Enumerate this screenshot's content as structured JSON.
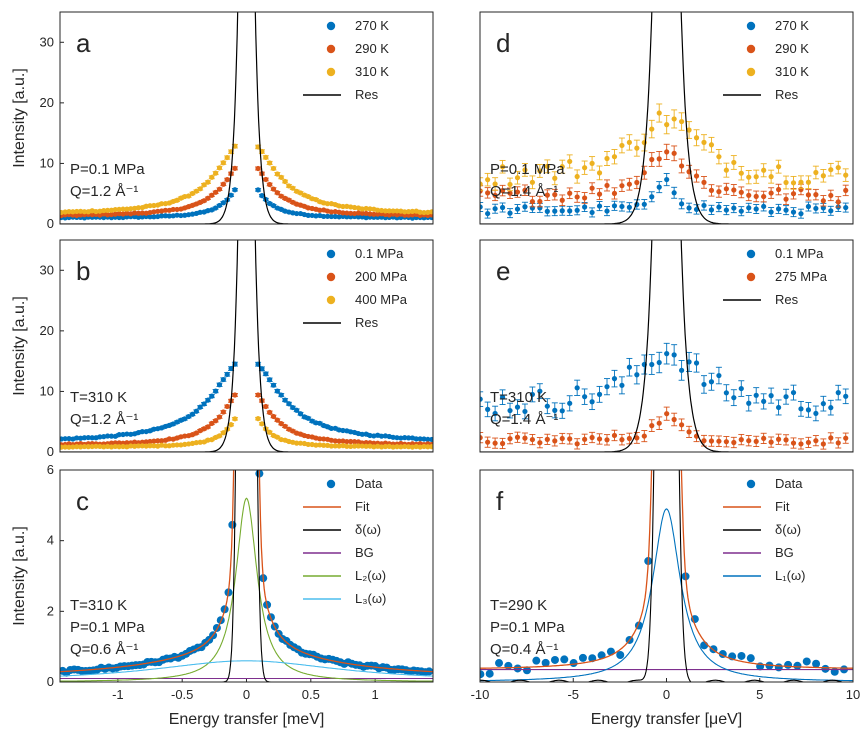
{
  "colors": {
    "blue": "#0072BD",
    "orange": "#D95319",
    "yellow": "#EDB120",
    "purple": "#7E2F8E",
    "green": "#77AC30",
    "cyan": "#4DBEEE",
    "black": "#000000"
  },
  "chart_data": [
    {
      "type": "scatter",
      "panel": "a",
      "letter": "a",
      "conditions": [
        "P=0.1 MPa",
        "Q=1.2 Å⁻¹"
      ],
      "xlim": [
        -1.45,
        1.45
      ],
      "ylim": [
        0,
        35
      ],
      "yticks": [
        0,
        10,
        20,
        30
      ],
      "xticks": [],
      "ylabel": "Intensity [a.u.]",
      "xlabel": "",
      "legend": "top-right",
      "legend_entries": [
        "270 K",
        "290 K",
        "310 K",
        "Res"
      ],
      "model": {
        "kind": "lor",
        "widths": [
          0.14,
          0.2,
          0.26
        ],
        "peaks": [
          6.5,
          9.5,
          12.5
        ],
        "bases": [
          1.0,
          1.3,
          1.6
        ],
        "hide": 0.08,
        "err": 0.07,
        "step": 0.03
      },
      "resolution": {
        "width": 0.045,
        "peak": 150
      },
      "series": [
        {
          "name": "270 K",
          "color_key": "blue"
        },
        {
          "name": "290 K",
          "color_key": "orange"
        },
        {
          "name": "310 K",
          "color_key": "yellow"
        }
      ]
    },
    {
      "type": "scatter",
      "panel": "b",
      "letter": "b",
      "conditions": [
        "T=310 K",
        "Q=1.2 Å⁻¹"
      ],
      "xlim": [
        -1.45,
        1.45
      ],
      "ylim": [
        0,
        35
      ],
      "yticks": [
        0,
        10,
        20,
        30
      ],
      "xticks": [],
      "ylabel": "Intensity [a.u.]",
      "xlabel": "",
      "legend": "top-right",
      "legend_entries": [
        "0.1 MPa",
        "200 MPa",
        "400 MPa",
        "Res"
      ],
      "model": {
        "kind": "lor",
        "widths": [
          0.3,
          0.2,
          0.13
        ],
        "peaks": [
          14,
          10,
          7
        ],
        "bases": [
          1.6,
          1.1,
          0.8
        ],
        "hide": 0.08,
        "err": 0.07,
        "step": 0.03
      },
      "resolution": {
        "width": 0.045,
        "peak": 150
      },
      "series": [
        {
          "name": "0.1 MPa",
          "color_key": "blue"
        },
        {
          "name": "200 MPa",
          "color_key": "orange"
        },
        {
          "name": "400 MPa",
          "color_key": "yellow"
        }
      ]
    },
    {
      "type": "scatter",
      "panel": "c",
      "letter": "c",
      "conditions": [
        "T=310 K",
        "P=0.1 MPa",
        "Q=0.6 Å⁻¹"
      ],
      "xlim": [
        -1.45,
        1.45
      ],
      "ylim": [
        0,
        6
      ],
      "yticks": [
        0,
        2,
        4,
        6
      ],
      "xticks": [
        -1,
        -0.5,
        0,
        0.5,
        1
      ],
      "ylabel": "Intensity [a.u.]",
      "xlabel": "Energy transfer [meV]",
      "legend": "top-right",
      "legend_entries": [
        "Data",
        "Fit",
        "δ(ω)",
        "BG",
        "L₂(ω)",
        "L₃(ω)"
      ],
      "components": {
        "bg": 0.1,
        "l2_peak": 5.2,
        "l2_width": 0.1,
        "l3_peak": 0.6,
        "l3_width": 0.9,
        "delta_width": 0.04,
        "delta_peak": 60
      },
      "data_points": {
        "step": 0.03,
        "hide": 0.1
      }
    },
    {
      "type": "scatter",
      "panel": "d",
      "letter": "d",
      "conditions": [
        "P=0.1 MPa",
        "Q=1.4 Å⁻¹"
      ],
      "xlim": [
        -10,
        10
      ],
      "ylim": [
        0,
        35
      ],
      "yticks": [],
      "xticks": [],
      "ylabel": "",
      "xlabel": "",
      "legend": "top-right",
      "legend_entries": [
        "270 K",
        "290 K",
        "310 K",
        "Res"
      ],
      "model": {
        "kind": "lor",
        "widths": [
          0.5,
          1.2,
          2.0
        ],
        "peaks": [
          5,
          7.5,
          9
        ],
        "bases": [
          2.5,
          5.0,
          8.5
        ],
        "hide": 0,
        "err": 0.3,
        "step": 0.4
      },
      "resolution": {
        "width": 0.45,
        "peak": 200
      },
      "series": [
        {
          "name": "270 K",
          "color_key": "blue"
        },
        {
          "name": "290 K",
          "color_key": "orange"
        },
        {
          "name": "310 K",
          "color_key": "yellow"
        }
      ]
    },
    {
      "type": "scatter",
      "panel": "e",
      "letter": "e",
      "conditions": [
        "T=310 K",
        "Q=1.4 Å⁻¹"
      ],
      "xlim": [
        -10,
        10
      ],
      "ylim": [
        0,
        35
      ],
      "yticks": [],
      "xticks": [],
      "ylabel": "",
      "xlabel": "",
      "legend": "top-right",
      "legend_entries": [
        "0.1 MPa",
        "275 MPa",
        "Res"
      ],
      "model": {
        "kind": "lor",
        "widths": [
          2.0,
          0.8
        ],
        "peaks": [
          8,
          4
        ],
        "bases": [
          8.5,
          2.0
        ],
        "hide": 0,
        "err": 0.35,
        "step": 0.4
      },
      "resolution": {
        "width": 0.45,
        "peak": 200
      },
      "series": [
        {
          "name": "0.1 MPa",
          "color_key": "blue"
        },
        {
          "name": "275 MPa",
          "color_key": "orange"
        }
      ]
    },
    {
      "type": "scatter",
      "panel": "f",
      "letter": "f",
      "conditions": [
        "T=290 K",
        "P=0.1 MPa",
        "Q=0.4 Å⁻¹"
      ],
      "xlim": [
        -10,
        10
      ],
      "ylim": [
        0,
        6
      ],
      "yticks": [],
      "xticks": [
        -10,
        -5,
        0,
        5,
        10
      ],
      "ylabel": "",
      "xlabel": "Energy transfer [μeV]",
      "legend": "top-right",
      "legend_entries": [
        "Data",
        "Fit",
        "δ(ω)",
        "BG",
        "L₁(ω)"
      ],
      "components": {
        "bg": 0.35,
        "l1_peak": 4.9,
        "l1_width": 0.9,
        "delta_width": 0.35,
        "delta_peak": 40
      },
      "data_points": {
        "step": 0.5,
        "hide": 0.4
      }
    }
  ]
}
